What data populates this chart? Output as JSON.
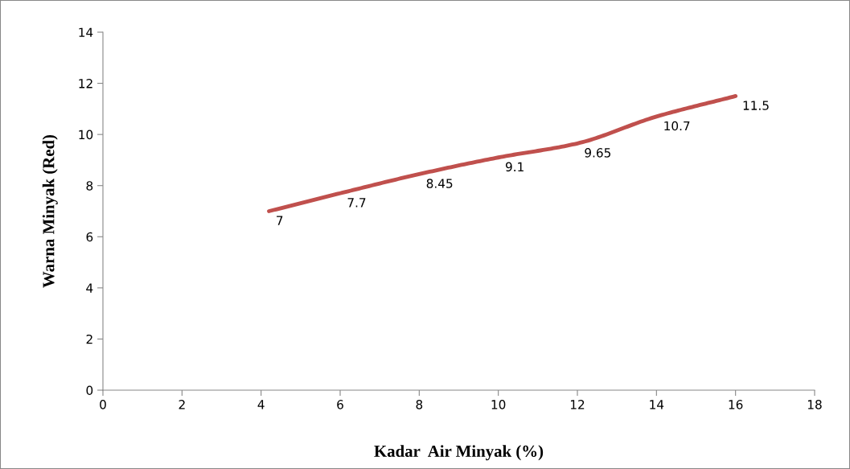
{
  "chart_data": {
    "type": "line",
    "xlabel": "Kadar  Air Minyak (%)",
    "ylabel": "Warna Minyak (Red)",
    "x": [
      4.2,
      6,
      8,
      10,
      12,
      14,
      16
    ],
    "series": [
      {
        "color": "#c0504d",
        "values": [
          7,
          7.7,
          8.45,
          9.1,
          9.65,
          10.7,
          11.5
        ]
      }
    ],
    "xlim": [
      0,
      18
    ],
    "xticks": [
      0,
      2,
      4,
      6,
      8,
      10,
      12,
      14,
      16,
      18
    ],
    "ylim": [
      0,
      14
    ],
    "yticks": [
      0,
      2,
      4,
      6,
      8,
      10,
      12,
      14
    ],
    "grid": false,
    "legend": false,
    "marker": "none",
    "line_style": "solid",
    "data_labels": true
  }
}
